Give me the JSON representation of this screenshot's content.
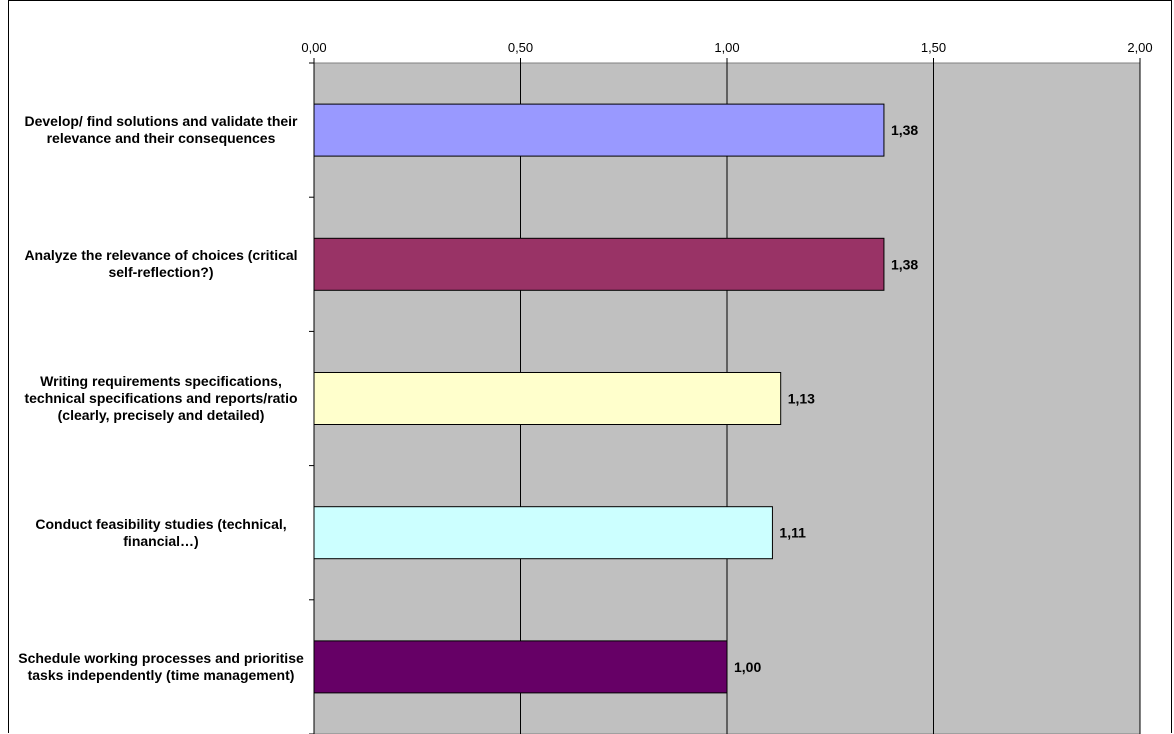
{
  "chart_data": {
    "type": "bar",
    "orientation": "horizontal",
    "title": "",
    "xlabel": "",
    "ylabel": "",
    "xlim": [
      0,
      2
    ],
    "xticks": [
      0,
      0.5,
      1,
      1.5,
      2
    ],
    "xtick_labels": [
      "0,00",
      "0,50",
      "1,00",
      "1,50",
      "2,00"
    ],
    "x_axis_position": "top",
    "grid": true,
    "plot_background": "#c0c0c0",
    "categories": [
      "Develop/ find solutions and validate their relevance and their consequences",
      "Analyze the relevance of choices (critical self-reflection?)",
      "Writing requirements specifications, technical specifications and reports/ratio (clearly, precisely and detailed)",
      "Conduct feasibility studies (technical, financial…)",
      "Schedule working processes and prioritise tasks independently (time management)"
    ],
    "values": [
      1.38,
      1.38,
      1.13,
      1.11,
      1.0
    ],
    "value_labels": [
      "1,38",
      "1,38",
      "1,13",
      "1,11",
      "1,00"
    ],
    "colors": [
      "#9999ff",
      "#993366",
      "#ffffcc",
      "#ccffff",
      "#660066"
    ]
  }
}
